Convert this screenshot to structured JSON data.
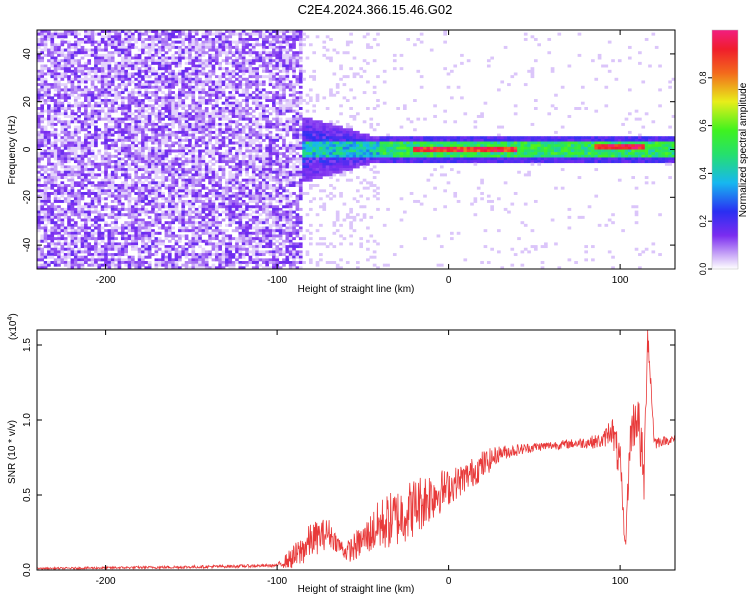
{
  "title": "C2E4.2024.366.15.46.G02",
  "colors": {
    "snr_line": "#e83a3a",
    "axis": "#000000",
    "bg": "#ffffff"
  },
  "chart_data": [
    {
      "type": "heatmap",
      "title": "C2E4.2024.366.15.46.G02",
      "xlabel": "Height of straight line (km)",
      "ylabel": "Frequency (Hz)",
      "xlim": [
        -240,
        132
      ],
      "ylim": [
        -50,
        50
      ],
      "x_ticks": [
        -200,
        -100,
        0,
        100
      ],
      "y_ticks": [
        -40,
        -20,
        0,
        20,
        40
      ],
      "colorbar": {
        "label": "Normalized spectral amplitude",
        "range": [
          0,
          1
        ],
        "ticks": [
          0.0,
          0.2,
          0.4,
          0.6,
          0.8
        ],
        "tick_labels": [
          "0.0",
          "0.2",
          "0.4",
          "0.6",
          "0.8"
        ],
        "colormap": "rainbow (white-violet-blue-cyan-green-yellow-red-magenta)"
      },
      "regions": [
        {
          "x_range": [
            -240,
            -85
          ],
          "freq_range": [
            -50,
            50
          ],
          "amplitude": 0.1
        },
        {
          "x_range": [
            -85,
            -40
          ],
          "freq_range": [
            -12,
            12
          ],
          "amplitude": 0.3
        },
        {
          "x_range": [
            -40,
            132
          ],
          "freq_range": [
            -3,
            3
          ],
          "amplitude": 0.5
        },
        {
          "x_range": [
            -20,
            40
          ],
          "freq_range": [
            -1,
            1
          ],
          "amplitude": 0.9
        },
        {
          "x_range": [
            85,
            115
          ],
          "freq_range": [
            0,
            2
          ],
          "amplitude": 0.95
        }
      ],
      "grid": false
    },
    {
      "type": "line",
      "xlabel": "Height of straight line (km)",
      "ylabel": "SNR (10 * v/v)",
      "y_multiplier_label": "(x10",
      "y_multiplier_exponent": "4",
      "xlim": [
        -240,
        132
      ],
      "ylim": [
        0,
        1.6
      ],
      "x_ticks": [
        -200,
        -100,
        0,
        100
      ],
      "y_ticks": [
        0.0,
        0.5,
        1.0,
        1.5
      ],
      "y_tick_labels": [
        "0.0",
        "0.5",
        "1.0",
        "1.5"
      ],
      "series": [
        {
          "x": [
            -240,
            -150,
            -100,
            -88,
            -80,
            -70,
            -65,
            -60,
            -55,
            -50,
            -40,
            -30,
            -20,
            -10,
            0,
            10,
            20,
            30,
            40,
            50,
            60,
            70,
            80,
            90,
            95,
            100,
            103,
            106,
            110,
            114,
            116,
            120,
            125,
            132
          ],
          "y": [
            0.01,
            0.02,
            0.03,
            0.1,
            0.2,
            0.25,
            0.18,
            0.12,
            0.15,
            0.2,
            0.3,
            0.35,
            0.42,
            0.5,
            0.55,
            0.62,
            0.7,
            0.78,
            0.8,
            0.82,
            0.83,
            0.84,
            0.85,
            0.86,
            0.95,
            0.7,
            0.15,
            0.9,
            1.05,
            0.6,
            1.6,
            0.85,
            0.86,
            0.87
          ],
          "noise": [
            0.005,
            0.01,
            0.01,
            0.1,
            0.12,
            0.1,
            0.06,
            0.06,
            0.1,
            0.1,
            0.18,
            0.2,
            0.2,
            0.18,
            0.12,
            0.1,
            0.1,
            0.05,
            0.04,
            0.03,
            0.03,
            0.03,
            0.04,
            0.05,
            0.1,
            0.15,
            0.05,
            0.15,
            0.2,
            0.2,
            0.1,
            0.05,
            0.03,
            0.03
          ]
        }
      ],
      "grid": false
    }
  ]
}
